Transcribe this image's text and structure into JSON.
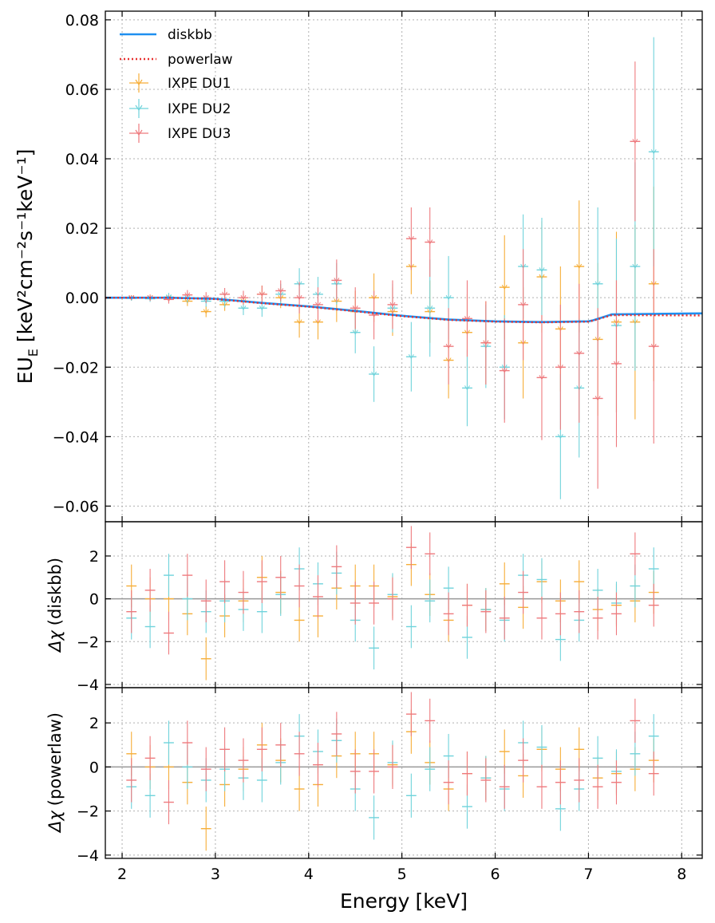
{
  "chart_data": {
    "type": "line",
    "shared_x": {
      "label_main": "Energy",
      "label_unit": "[keV]",
      "xlim": [
        1.82,
        8.22
      ],
      "ticks": [
        2,
        3,
        4,
        5,
        6,
        7,
        8
      ]
    },
    "colors": {
      "diskbb": "#1f8ff0",
      "powerlaw": "#e8302f",
      "IXPE DU1": "#f6ae38",
      "IXPE DU2": "#6fd3db",
      "IXPE DU3": "#ee7a7e",
      "zero_line": "#999999"
    },
    "legend": {
      "position": "upper-left",
      "entries": [
        {
          "label": "diskbb",
          "style": "solid-line"
        },
        {
          "label": "powerlaw",
          "style": "dotted-line"
        },
        {
          "label": "IXPE DU1",
          "style": "errorbar"
        },
        {
          "label": "IXPE DU2",
          "style": "errorbar"
        },
        {
          "label": "IXPE DU3",
          "style": "errorbar"
        }
      ]
    },
    "panels": [
      {
        "id": "spectrum",
        "ylabel_main": "EU",
        "ylabel_sub": "E",
        "ylabel_unit": "[keV²cm⁻²s⁻¹keV⁻¹]",
        "ylim": [
          -0.0645,
          0.0825
        ],
        "yticks": [
          0.08,
          0.06,
          0.04,
          0.02,
          0.0,
          -0.02,
          -0.04,
          -0.06
        ],
        "ytick_labels": [
          "0.08",
          "0.06",
          "0.04",
          "0.02",
          "0.00",
          "−0.02",
          "−0.04",
          "−0.06"
        ],
        "models": [
          {
            "name": "diskbb",
            "x": [
              1.82,
              2.5,
              3.0,
              3.5,
              4.0,
              4.5,
              5.0,
              5.5,
              6.0,
              6.5,
              7.0,
              7.05,
              7.25,
              8.22
            ],
            "y": [
              0.0,
              0.0,
              -0.0003,
              -0.0015,
              -0.0025,
              -0.0038,
              -0.0052,
              -0.0063,
              -0.0068,
              -0.007,
              -0.0068,
              -0.0065,
              -0.0048,
              -0.0045
            ]
          },
          {
            "name": "powerlaw",
            "x": [
              1.82,
              2.5,
              3.0,
              3.5,
              4.0,
              4.5,
              5.0,
              5.5,
              6.0,
              6.5,
              7.0,
              7.05,
              7.25,
              8.22
            ],
            "y": [
              0.0,
              0.0,
              -0.0004,
              -0.0016,
              -0.0026,
              -0.0039,
              -0.0053,
              -0.0064,
              -0.0069,
              -0.0071,
              -0.0069,
              -0.0066,
              -0.005,
              -0.0051
            ]
          }
        ],
        "series": [
          {
            "name": "IXPE DU1",
            "x": [
              2.1,
              2.3,
              2.5,
              2.7,
              2.9,
              3.1,
              3.3,
              3.5,
              3.7,
              3.9,
              4.1,
              4.3,
              4.5,
              4.7,
              4.9,
              5.1,
              5.3,
              5.5,
              5.7,
              5.9,
              6.1,
              6.3,
              6.5,
              6.7,
              6.9,
              7.1,
              7.3,
              7.5,
              7.7
            ],
            "y": [
              0.0,
              0.0,
              0.0,
              -0.001,
              -0.004,
              -0.002,
              -0.001,
              0.001,
              0.0,
              -0.007,
              -0.007,
              -0.001,
              -0.004,
              0.0,
              -0.004,
              0.009,
              -0.004,
              -0.018,
              -0.01,
              -0.013,
              0.003,
              -0.013,
              0.006,
              -0.009,
              0.009,
              -0.012,
              -0.007,
              -0.007,
              0.004
            ],
            "err": [
              0.0007,
              0.0009,
              0.0012,
              0.0014,
              0.0016,
              0.0018,
              0.002,
              0.0025,
              0.003,
              0.0045,
              0.005,
              0.006,
              0.006,
              0.007,
              0.007,
              0.008,
              0.009,
              0.011,
              0.011,
              0.012,
              0.015,
              0.016,
              0.016,
              0.018,
              0.019,
              0.022,
              0.026,
              0.028,
              0.028
            ]
          },
          {
            "name": "IXPE DU2",
            "x": [
              2.1,
              2.3,
              2.5,
              2.7,
              2.9,
              3.1,
              3.3,
              3.5,
              3.7,
              3.9,
              4.1,
              4.3,
              4.5,
              4.7,
              4.9,
              5.1,
              5.3,
              5.5,
              5.7,
              5.9,
              6.1,
              6.3,
              6.5,
              6.7,
              6.9,
              7.1,
              7.3,
              7.5,
              7.7
            ],
            "y": [
              -0.0002,
              -0.0003,
              0.0002,
              0.0,
              -0.001,
              -0.001,
              -0.003,
              -0.003,
              0.001,
              0.004,
              0.001,
              0.004,
              -0.01,
              -0.022,
              -0.003,
              -0.017,
              -0.003,
              0.0,
              -0.026,
              -0.014,
              -0.02,
              0.009,
              0.008,
              -0.04,
              -0.026,
              0.004,
              -0.008,
              0.009,
              0.042
            ],
            "err": [
              0.0007,
              0.0009,
              0.0012,
              0.0014,
              0.0016,
              0.0018,
              0.002,
              0.0025,
              0.003,
              0.0045,
              0.005,
              0.006,
              0.006,
              0.008,
              0.007,
              0.01,
              0.014,
              0.012,
              0.011,
              0.012,
              0.015,
              0.015,
              0.015,
              0.018,
              0.02,
              0.022,
              0.025,
              0.03,
              0.033
            ]
          },
          {
            "name": "IXPE DU3",
            "x": [
              2.1,
              2.3,
              2.5,
              2.7,
              2.9,
              3.1,
              3.3,
              3.5,
              3.7,
              3.9,
              4.1,
              4.3,
              4.5,
              4.7,
              4.9,
              5.1,
              5.3,
              5.5,
              5.7,
              5.9,
              6.1,
              6.3,
              6.5,
              6.7,
              6.9,
              7.1,
              7.3,
              7.5,
              7.7
            ],
            "y": [
              0.0,
              0.0,
              -0.0005,
              0.0008,
              0.0,
              0.001,
              0.0,
              0.001,
              0.002,
              0.0,
              -0.002,
              0.005,
              -0.003,
              -0.005,
              -0.002,
              0.017,
              0.016,
              -0.014,
              -0.006,
              -0.013,
              -0.021,
              -0.002,
              -0.023,
              -0.02,
              -0.016,
              -0.029,
              -0.019,
              0.045,
              -0.014
            ],
            "err": [
              0.0007,
              0.0009,
              0.0012,
              0.0014,
              0.0016,
              0.0018,
              0.002,
              0.0025,
              0.003,
              0.0045,
              0.005,
              0.006,
              0.006,
              0.007,
              0.007,
              0.009,
              0.01,
              0.011,
              0.011,
              0.012,
              0.015,
              0.016,
              0.018,
              0.018,
              0.02,
              0.026,
              0.024,
              0.023,
              0.028
            ]
          }
        ]
      },
      {
        "id": "resid-diskbb",
        "ylabel_main": "Δχ",
        "ylabel_unit": "(diskbb)",
        "ylim": [
          -4.15,
          3.6
        ],
        "yticks": [
          2,
          0,
          -2,
          -4
        ],
        "ytick_labels": [
          "2",
          "0",
          "−2",
          "−4"
        ],
        "zero_line": true,
        "series": [
          {
            "name": "IXPE DU1",
            "x": [
              2.1,
              2.3,
              2.5,
              2.7,
              2.9,
              3.1,
              3.3,
              3.5,
              3.7,
              3.9,
              4.1,
              4.3,
              4.5,
              4.7,
              4.9,
              5.1,
              5.3,
              5.5,
              5.7,
              5.9,
              6.1,
              6.3,
              6.5,
              6.7,
              6.9,
              7.1,
              7.3,
              7.5,
              7.7
            ],
            "y": [
              0.6,
              0.0,
              0.0,
              -0.7,
              -2.8,
              -0.8,
              -0.1,
              1.0,
              0.3,
              -1.0,
              -0.8,
              0.5,
              0.6,
              0.6,
              0.1,
              1.6,
              0.2,
              -1.0,
              -0.3,
              -0.5,
              0.7,
              -0.4,
              0.8,
              -0.1,
              0.8,
              -0.5,
              -0.3,
              -0.1,
              0.3
            ]
          },
          {
            "name": "IXPE DU2",
            "x": [
              2.1,
              2.3,
              2.5,
              2.7,
              2.9,
              3.1,
              3.3,
              3.5,
              3.7,
              3.9,
              4.1,
              4.3,
              4.5,
              4.7,
              4.9,
              5.1,
              5.3,
              5.5,
              5.7,
              5.9,
              6.1,
              6.3,
              6.5,
              6.7,
              6.9,
              7.1,
              7.3,
              7.5,
              7.7
            ],
            "y": [
              -0.9,
              -1.3,
              1.1,
              0.0,
              -0.6,
              -0.1,
              -0.5,
              -0.6,
              0.2,
              1.4,
              0.7,
              1.2,
              -1.0,
              -2.3,
              0.2,
              -1.3,
              -0.1,
              0.5,
              -1.8,
              -0.5,
              -1.0,
              1.1,
              0.9,
              -1.9,
              -1.0,
              0.4,
              -0.2,
              0.6,
              1.4
            ]
          },
          {
            "name": "IXPE DU3",
            "x": [
              2.1,
              2.3,
              2.5,
              2.7,
              2.9,
              3.1,
              3.3,
              3.5,
              3.7,
              3.9,
              4.1,
              4.3,
              4.5,
              4.7,
              4.9,
              5.1,
              5.3,
              5.5,
              5.7,
              5.9,
              6.1,
              6.3,
              6.5,
              6.7,
              6.9,
              7.1,
              7.3,
              7.5,
              7.7
            ],
            "y": [
              -0.6,
              0.4,
              -1.6,
              1.1,
              -0.1,
              0.8,
              0.3,
              0.8,
              1.0,
              0.6,
              0.1,
              1.5,
              -0.2,
              -0.2,
              0.0,
              2.4,
              2.1,
              -0.7,
              -0.3,
              -0.6,
              -0.9,
              0.3,
              -0.9,
              -0.7,
              -0.6,
              -0.9,
              -0.7,
              2.1,
              -0.3
            ]
          }
        ],
        "err": 1.0
      },
      {
        "id": "resid-powerlaw",
        "ylabel_main": "Δχ",
        "ylabel_unit": "(powerlaw)",
        "ylim": [
          -4.15,
          3.6
        ],
        "yticks": [
          2,
          0,
          -2,
          -4
        ],
        "ytick_labels": [
          "2",
          "0",
          "−2",
          "−4"
        ],
        "zero_line": true,
        "series": [
          {
            "name": "IXPE DU1",
            "x": [
              2.1,
              2.3,
              2.5,
              2.7,
              2.9,
              3.1,
              3.3,
              3.5,
              3.7,
              3.9,
              4.1,
              4.3,
              4.5,
              4.7,
              4.9,
              5.1,
              5.3,
              5.5,
              5.7,
              5.9,
              6.1,
              6.3,
              6.5,
              6.7,
              6.9,
              7.1,
              7.3,
              7.5,
              7.7
            ],
            "y": [
              0.6,
              0.0,
              0.0,
              -0.7,
              -2.8,
              -0.8,
              -0.1,
              1.0,
              0.3,
              -1.0,
              -0.8,
              0.5,
              0.6,
              0.6,
              0.1,
              1.6,
              0.2,
              -1.0,
              -0.3,
              -0.5,
              0.7,
              -0.4,
              0.8,
              -0.1,
              0.8,
              -0.5,
              -0.3,
              -0.1,
              0.3
            ]
          },
          {
            "name": "IXPE DU2",
            "x": [
              2.1,
              2.3,
              2.5,
              2.7,
              2.9,
              3.1,
              3.3,
              3.5,
              3.7,
              3.9,
              4.1,
              4.3,
              4.5,
              4.7,
              4.9,
              5.1,
              5.3,
              5.5,
              5.7,
              5.9,
              6.1,
              6.3,
              6.5,
              6.7,
              6.9,
              7.1,
              7.3,
              7.5,
              7.7
            ],
            "y": [
              -0.9,
              -1.3,
              1.1,
              0.0,
              -0.6,
              -0.1,
              -0.5,
              -0.6,
              0.2,
              1.4,
              0.7,
              1.2,
              -1.0,
              -2.3,
              0.2,
              -1.3,
              -0.1,
              0.5,
              -1.8,
              -0.5,
              -1.0,
              1.1,
              0.9,
              -1.9,
              -1.0,
              0.4,
              -0.2,
              0.6,
              1.4
            ]
          },
          {
            "name": "IXPE DU3",
            "x": [
              2.1,
              2.3,
              2.5,
              2.7,
              2.9,
              3.1,
              3.3,
              3.5,
              3.7,
              3.9,
              4.1,
              4.3,
              4.5,
              4.7,
              4.9,
              5.1,
              5.3,
              5.5,
              5.7,
              5.9,
              6.1,
              6.3,
              6.5,
              6.7,
              6.9,
              7.1,
              7.3,
              7.5,
              7.7
            ],
            "y": [
              -0.6,
              0.4,
              -1.6,
              1.1,
              -0.1,
              0.8,
              0.3,
              0.8,
              1.0,
              0.6,
              0.1,
              1.5,
              -0.2,
              -0.2,
              0.0,
              2.4,
              2.1,
              -0.7,
              -0.3,
              -0.6,
              -0.9,
              0.3,
              -0.9,
              -0.7,
              -0.6,
              -0.9,
              -0.7,
              2.1,
              -0.3
            ]
          }
        ],
        "err": 1.0
      }
    ]
  }
}
